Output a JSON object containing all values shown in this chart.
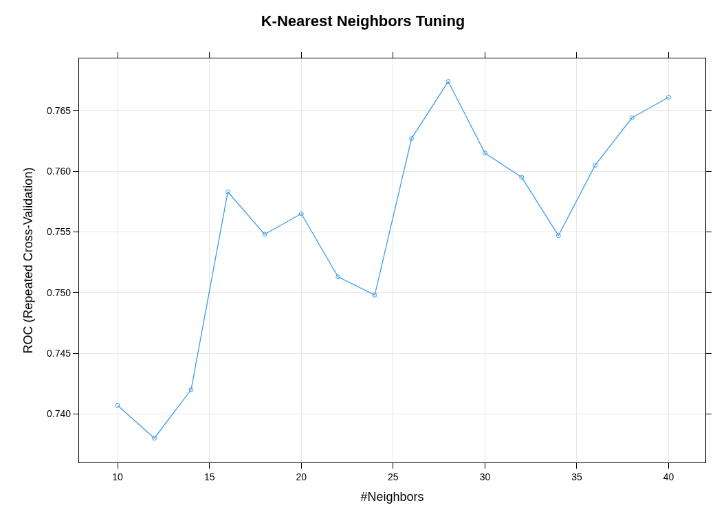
{
  "chart_data": {
    "type": "line",
    "title": "K-Nearest Neighbors Tuning",
    "xlabel": "#Neighbors",
    "ylabel": "ROC (Repeated Cross-Validation)",
    "x": [
      10,
      12,
      14,
      16,
      18,
      20,
      22,
      24,
      26,
      28,
      30,
      32,
      34,
      36,
      38,
      40
    ],
    "series": [
      {
        "color": "#3d9be9",
        "values": [
          0.7407,
          0.738,
          0.742,
          0.7583,
          0.7548,
          0.7565,
          0.7513,
          0.7498,
          0.7627,
          0.7674,
          0.7615,
          0.7595,
          0.7547,
          0.7605,
          0.7644,
          0.7661
        ]
      }
    ],
    "xlim": [
      7.9,
      42.0
    ],
    "ylim": [
      0.736,
      0.7693
    ],
    "xticks": [
      10,
      15,
      20,
      25,
      30,
      35,
      40
    ],
    "yticks": [
      {
        "value": 0.74,
        "label": "0.740"
      },
      {
        "value": 0.745,
        "label": "0.745"
      },
      {
        "value": 0.75,
        "label": "0.750"
      },
      {
        "value": 0.755,
        "label": "0.755"
      },
      {
        "value": 0.76,
        "label": "0.760"
      },
      {
        "value": 0.765,
        "label": "0.765"
      }
    ],
    "grid": true,
    "marker": "circle",
    "line_style": "solid",
    "legend": false
  }
}
